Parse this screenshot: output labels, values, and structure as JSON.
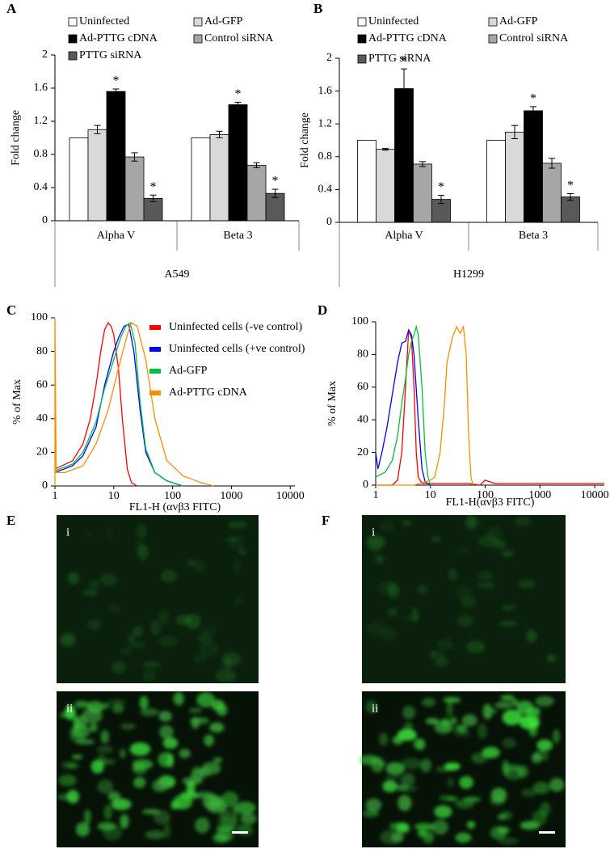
{
  "chart_data": [
    {
      "type": "bar",
      "panel_label": "A",
      "y_label": "Fold change",
      "group_label": "A549",
      "categories": [
        "Alpha V",
        "Beta 3"
      ],
      "series": [
        {
          "name": "Uninfected",
          "color": "#ffffff",
          "values": [
            1,
            1
          ]
        },
        {
          "name": "Ad-GFP",
          "color": "#d9d9d9",
          "values": [
            1.1,
            1.04
          ],
          "errors": [
            0.05,
            0.04
          ]
        },
        {
          "name": "Ad-PTTG cDNA",
          "color": "#000000",
          "values": [
            1.56,
            1.4
          ],
          "errors": [
            0.03,
            0.03
          ],
          "significance": [
            "*",
            "*"
          ]
        },
        {
          "name": "Control siRNA",
          "color": "#a6a6a6",
          "values": [
            0.77,
            0.67
          ],
          "errors": [
            0.05,
            0.03
          ]
        },
        {
          "name": "PTTG siRNA",
          "color": "#595959",
          "values": [
            0.27,
            0.33
          ],
          "errors": [
            0.04,
            0.05
          ],
          "significance": [
            "*",
            "*"
          ]
        }
      ],
      "ylim": [
        0,
        2
      ],
      "yticks": [
        0,
        0.4,
        0.8,
        1.2,
        1.6,
        2
      ]
    },
    {
      "type": "bar",
      "panel_label": "B",
      "y_label": "Fold change",
      "group_label": "H1299",
      "categories": [
        "Alpha V",
        "Beta 3"
      ],
      "series": [
        {
          "name": "Uninfected",
          "color": "#ffffff",
          "values": [
            1,
            1
          ]
        },
        {
          "name": "Ad-GFP",
          "color": "#d9d9d9",
          "values": [
            0.89,
            1.1
          ],
          "errors": [
            0.01,
            0.08
          ]
        },
        {
          "name": "Ad-PTTG cDNA",
          "color": "#000000",
          "values": [
            1.63,
            1.36
          ],
          "errors": [
            0.24,
            0.05
          ],
          "significance": [
            "*",
            "*"
          ]
        },
        {
          "name": "Control siRNA",
          "color": "#a6a6a6",
          "values": [
            0.71,
            0.72
          ],
          "errors": [
            0.03,
            0.06
          ]
        },
        {
          "name": "PTTG siRNA",
          "color": "#595959",
          "values": [
            0.28,
            0.31
          ],
          "errors": [
            0.05,
            0.04
          ],
          "significance": [
            "*",
            "*"
          ]
        }
      ],
      "ylim": [
        0,
        2
      ],
      "yticks": [
        0,
        0.4,
        0.8,
        1.2,
        1.6,
        2
      ]
    },
    {
      "type": "line",
      "panel_label": "C",
      "x_label": "FL1-H (αvβ3 FITC)",
      "y_label": "% of Max",
      "log_x": true,
      "xlim": [
        1,
        12000
      ],
      "xticks": [
        1,
        10,
        100,
        1000,
        10000
      ],
      "ylim": [
        0,
        100
      ],
      "yticks": [
        0,
        20,
        40,
        60,
        80,
        100
      ],
      "series": [
        {
          "name": "Uninfected cells (-ve control)",
          "color": "#ff0000",
          "x": [
            1,
            2,
            3,
            4,
            5,
            6,
            7,
            8,
            9,
            10,
            12,
            14,
            17,
            20,
            25
          ],
          "values": [
            10,
            15,
            25,
            40,
            60,
            80,
            93,
            97,
            95,
            90,
            70,
            40,
            10,
            2,
            0
          ]
        },
        {
          "name": "Uninfected cells (+ve control)",
          "color": "#0000ff",
          "x": [
            1,
            2,
            3,
            5,
            7,
            10,
            12,
            15,
            18,
            22,
            28,
            35,
            50,
            80,
            150
          ],
          "values": [
            8,
            12,
            18,
            35,
            60,
            80,
            88,
            95,
            96,
            80,
            45,
            20,
            8,
            3,
            0
          ]
        },
        {
          "name": "Ad-GFP",
          "color": "#00c040",
          "x": [
            1,
            2,
            3,
            5,
            7,
            10,
            13,
            16,
            19,
            23,
            28,
            35,
            50,
            80,
            150
          ],
          "values": [
            9,
            13,
            20,
            38,
            58,
            75,
            88,
            95,
            97,
            85,
            50,
            22,
            8,
            3,
            0
          ]
        },
        {
          "name": "Ad-PTTG cDNA",
          "color": "#ff8c00",
          "x": [
            1,
            1,
            1.05,
            1.5,
            3,
            5,
            8,
            12,
            17,
            20,
            25,
            35,
            50,
            80,
            150,
            300,
            500
          ],
          "values": [
            0,
            100,
            8,
            8,
            12,
            25,
            45,
            70,
            90,
            97,
            95,
            75,
            40,
            15,
            6,
            2,
            0
          ]
        }
      ]
    },
    {
      "type": "line",
      "panel_label": "D",
      "x_label": "FL1-H(αvβ3 FITC)",
      "y_label": "% of Max",
      "log_x": true,
      "xlim": [
        1,
        15000
      ],
      "xticks": [
        1,
        10,
        100,
        1000,
        10000
      ],
      "ylim": [
        0,
        100
      ],
      "yticks": [
        0,
        20,
        40,
        60,
        80,
        100
      ],
      "series": [
        {
          "color": "#ff0000",
          "x": [
            1,
            2,
            2.5,
            3,
            3.5,
            4,
            4.5,
            5,
            5.5,
            6,
            7,
            10,
            50,
            80,
            100,
            150,
            200,
            1000,
            15000
          ],
          "values": [
            0,
            0,
            3,
            20,
            60,
            95,
            90,
            60,
            20,
            5,
            1,
            1,
            1,
            0,
            3,
            1,
            1,
            1,
            1
          ]
        },
        {
          "color": "#0000ff",
          "x": [
            1,
            1.1,
            1.3,
            1.6,
            2,
            2.5,
            3,
            3.5,
            4,
            4.5,
            5,
            6,
            7,
            8,
            10
          ],
          "values": [
            20,
            10,
            20,
            35,
            55,
            75,
            87,
            88,
            95,
            92,
            80,
            40,
            10,
            2,
            0
          ]
        },
        {
          "color": "#00c040",
          "x": [
            1,
            1.5,
            2,
            2.5,
            3,
            3.5,
            4,
            4.5,
            5,
            5.5,
            6,
            7,
            8,
            9,
            10
          ],
          "values": [
            5,
            8,
            15,
            30,
            50,
            65,
            80,
            88,
            92,
            97,
            92,
            60,
            20,
            5,
            0
          ]
        },
        {
          "color": "#ff8c00",
          "x": [
            1,
            5,
            8,
            10,
            12,
            15,
            18,
            20,
            25,
            30,
            35,
            40,
            45,
            50,
            55,
            60
          ],
          "values": [
            0,
            0,
            2,
            3,
            5,
            20,
            50,
            75,
            90,
            97,
            93,
            97,
            80,
            30,
            5,
            0
          ]
        }
      ]
    }
  ],
  "images": [
    {
      "panel_label": "E",
      "subpanels": [
        "i",
        "ii"
      ]
    },
    {
      "panel_label": "F",
      "subpanels": [
        "i",
        "ii"
      ]
    }
  ]
}
